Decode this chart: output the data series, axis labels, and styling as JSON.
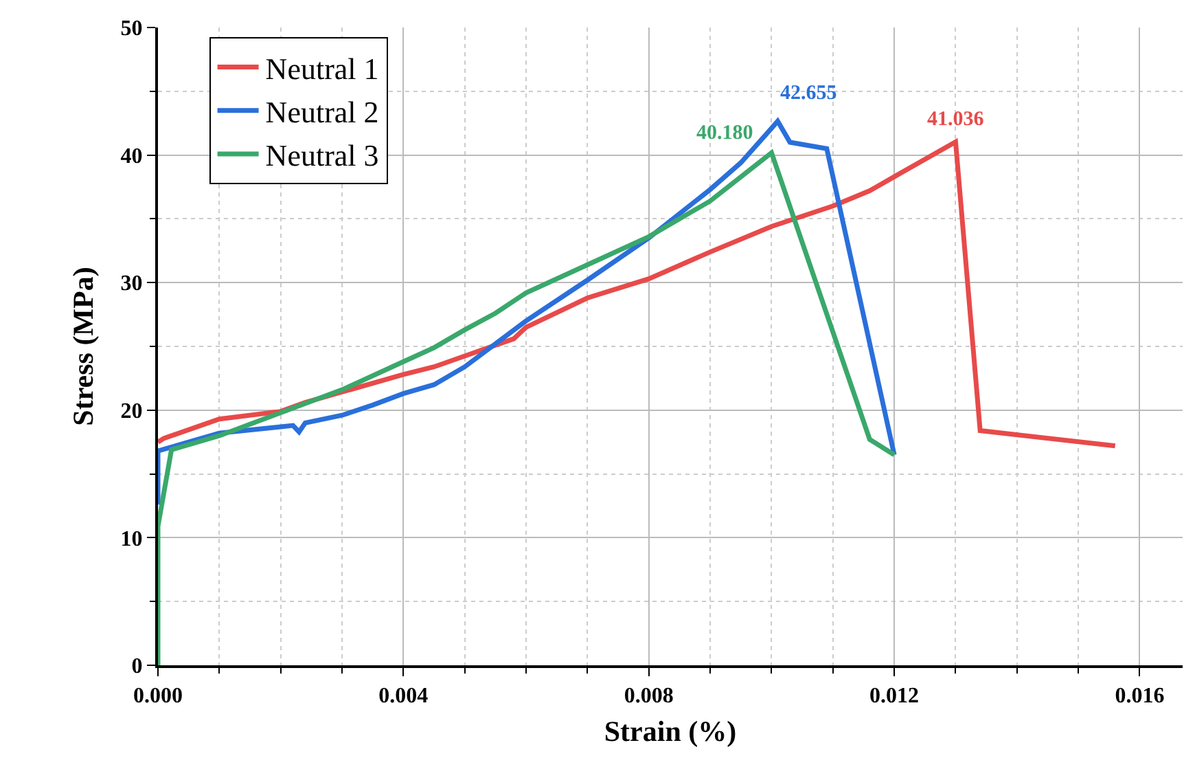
{
  "chart_data": {
    "type": "line",
    "xlabel": "Strain (%)",
    "ylabel": "Stress (MPa)",
    "xlim": [
      0,
      0.0167
    ],
    "ylim": [
      0,
      50
    ],
    "xticks": [
      {
        "value": 0,
        "label": "0.000"
      },
      {
        "value": 0.004,
        "label": "0.004"
      },
      {
        "value": 0.008,
        "label": "0.008"
      },
      {
        "value": 0.012,
        "label": "0.012"
      },
      {
        "value": 0.016,
        "label": "0.016"
      }
    ],
    "yticks": [
      0,
      10,
      20,
      30,
      40,
      50
    ],
    "grid": true,
    "legend": "top left",
    "line_style": "solid",
    "marker": "none",
    "series": [
      {
        "name": "Neutral 1",
        "color": "#e84a4a",
        "x": [
          0,
          0.0001,
          0.001,
          0.002,
          0.0024,
          0.004,
          0.0045,
          0.0058,
          0.006,
          0.007,
          0.008,
          0.009,
          0.01,
          0.011,
          0.0116,
          0.012,
          0.013,
          0.0134,
          0.0156
        ],
        "values": [
          17.5,
          17.8,
          19.3,
          19.9,
          20.6,
          22.8,
          23.4,
          25.6,
          26.5,
          28.8,
          30.3,
          32.4,
          34.4,
          36.0,
          37.2,
          38.3,
          41.036,
          18.4,
          17.2
        ]
      },
      {
        "name": "Neutral 2",
        "color": "#2a6fdb",
        "x": [
          0,
          0,
          0.001,
          0.002,
          0.0022,
          0.0023,
          0.0024,
          0.003,
          0.0035,
          0.004,
          0.0045,
          0.005,
          0.006,
          0.007,
          0.008,
          0.009,
          0.0095,
          0.01,
          0.0101,
          0.0103,
          0.0109,
          0.012
        ],
        "values": [
          12.6,
          16.8,
          18.2,
          18.7,
          18.8,
          18.3,
          19.0,
          19.6,
          20.4,
          21.3,
          22.0,
          23.4,
          27.0,
          30.2,
          33.5,
          37.3,
          39.4,
          42.1,
          42.655,
          41.0,
          40.5,
          16.5
        ]
      },
      {
        "name": "Neutral 3",
        "color": "#3aa86b",
        "x": [
          0,
          0,
          0.00022,
          0.001,
          0.002,
          0.003,
          0.004,
          0.0045,
          0.005,
          0.0055,
          0.006,
          0.007,
          0.008,
          0.009,
          0.01,
          0.0116,
          0.012
        ],
        "values": [
          0,
          10.9,
          16.9,
          18.0,
          19.8,
          21.6,
          23.8,
          24.9,
          26.3,
          27.6,
          29.2,
          31.4,
          33.6,
          36.4,
          40.18,
          17.7,
          16.5
        ]
      }
    ],
    "annotations": [
      {
        "text": "41.036",
        "x": 0.013,
        "y": 41.036
      },
      {
        "text": "42.655",
        "x": 0.0101,
        "y": 42.655
      },
      {
        "text": "40.180",
        "x": 0.01,
        "y": 40.18
      }
    ]
  }
}
